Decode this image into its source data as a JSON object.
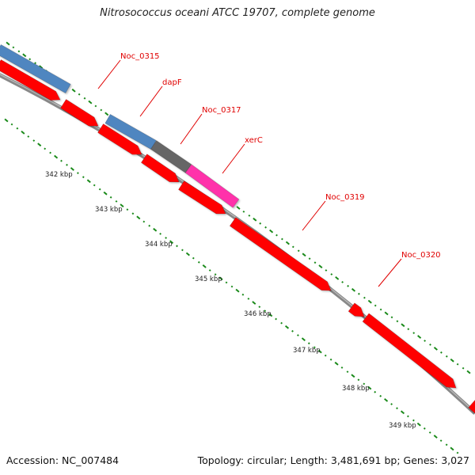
{
  "title": "Nitrosococcus oceani ATCC 19707, complete genome",
  "footer": {
    "accession": "Accession: NC_007484",
    "summary": "Topology: circular; Length: 3,481,691 bp; Genes: 3,027"
  },
  "colors": {
    "gene_cds": "#ff0000",
    "blue_feature": "#4f86c0",
    "grey_feature": "#666666",
    "pink_feature": "#ff33aa",
    "backbone": "#888888",
    "gc_dots": "#1a8a1a",
    "label": "#e00000"
  },
  "gene_labels": [
    "Noc_0315",
    "dapF",
    "Noc_0317",
    "xerC",
    "Noc_0319",
    "Noc_0320"
  ],
  "ticks": [
    "342 kbp",
    "343 kbp",
    "344 kbp",
    "345 kbp",
    "346 kbp",
    "347 kbp",
    "348 kbp",
    "349 kbp"
  ]
}
